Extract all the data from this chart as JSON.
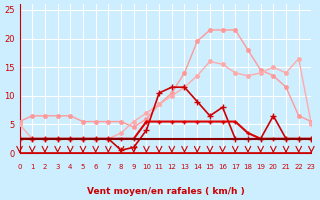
{
  "bg_color": "#cceeff",
  "grid_color": "#ffffff",
  "title": "",
  "xlabel": "Vent moyen/en rafales ( km/h )",
  "xlabel_color": "#cc0000",
  "x_ticks": [
    0,
    1,
    2,
    3,
    4,
    5,
    6,
    7,
    8,
    9,
    10,
    11,
    12,
    13,
    14,
    15,
    16,
    17,
    18,
    19,
    20,
    21,
    22,
    23
  ],
  "ylim": [
    0,
    26
  ],
  "yticks": [
    0,
    5,
    10,
    15,
    20,
    25
  ],
  "xlim": [
    0,
    23
  ],
  "arrow_color": "#cc0000",
  "line1_x": [
    0,
    1,
    2,
    3,
    4,
    5,
    6,
    7,
    8,
    9,
    10,
    11,
    12,
    13,
    14,
    15,
    16,
    17,
    18,
    19,
    20,
    21,
    22,
    23
  ],
  "line1_y": [
    5.5,
    6.5,
    6.5,
    6.5,
    6.5,
    5.5,
    5.5,
    5.5,
    5.5,
    4.5,
    6.0,
    8.5,
    10.5,
    14.0,
    19.5,
    21.5,
    21.5,
    21.5,
    18.0,
    14.5,
    13.5,
    11.5,
    6.5,
    5.5
  ],
  "line1_color": "#ff9999",
  "line1_marker": "o",
  "line1_markersize": 2.5,
  "line1_lw": 1.0,
  "line2_x": [
    0,
    1,
    2,
    3,
    4,
    5,
    6,
    7,
    8,
    9,
    10,
    11,
    12,
    13,
    14,
    15,
    16,
    17,
    18,
    19,
    20,
    21,
    22,
    23
  ],
  "line2_y": [
    5.0,
    2.5,
    2.5,
    2.5,
    2.5,
    2.5,
    2.5,
    2.5,
    3.5,
    5.5,
    7.0,
    8.5,
    10.0,
    11.5,
    13.5,
    16.0,
    15.5,
    14.0,
    13.5,
    14.0,
    15.0,
    14.0,
    16.5,
    5.0
  ],
  "line2_color": "#ffaaaa",
  "line2_marker": "o",
  "line2_markersize": 2.5,
  "line2_lw": 1.0,
  "line3_x": [
    0,
    1,
    2,
    3,
    4,
    5,
    6,
    7,
    8,
    9,
    10,
    11,
    12,
    13,
    14,
    15,
    16,
    17,
    18,
    19,
    20,
    21,
    22,
    23
  ],
  "line3_y": [
    2.5,
    2.5,
    2.5,
    2.5,
    2.5,
    2.5,
    2.5,
    2.5,
    0.5,
    1.0,
    4.0,
    10.5,
    11.5,
    11.5,
    9.0,
    6.5,
    8.0,
    2.5,
    2.5,
    2.5,
    6.5,
    2.5,
    2.5,
    2.5
  ],
  "line3_color": "#cc0000",
  "line3_marker": "+",
  "line3_markersize": 4,
  "line3_lw": 1.2,
  "line4_x": [
    0,
    1,
    2,
    3,
    4,
    5,
    6,
    7,
    8,
    9,
    10,
    11,
    12,
    13,
    14,
    15,
    16,
    17,
    18,
    19,
    20,
    21,
    22,
    23
  ],
  "line4_y": [
    2.5,
    2.5,
    2.5,
    2.5,
    2.5,
    2.5,
    2.5,
    2.5,
    2.5,
    2.5,
    5.5,
    5.5,
    5.5,
    5.5,
    5.5,
    5.5,
    5.5,
    5.5,
    3.5,
    2.5,
    2.5,
    2.5,
    2.5,
    2.5
  ],
  "line4_color": "#dd0000",
  "line4_marker": "+",
  "line4_markersize": 3,
  "line4_lw": 1.5,
  "line5_x": [
    0,
    1,
    2,
    3,
    4,
    5,
    6,
    7,
    8,
    9,
    10,
    11,
    12,
    13,
    14,
    15,
    16,
    17,
    18,
    19,
    20,
    21,
    22,
    23
  ],
  "line5_y": [
    2.5,
    2.5,
    2.5,
    2.5,
    2.5,
    2.5,
    2.5,
    2.5,
    2.5,
    2.5,
    2.5,
    2.5,
    2.5,
    2.5,
    2.5,
    2.5,
    2.5,
    2.5,
    2.5,
    2.5,
    2.5,
    2.5,
    2.5,
    2.5
  ],
  "line5_color": "#880000",
  "line5_marker": null,
  "line5_lw": 1.5
}
